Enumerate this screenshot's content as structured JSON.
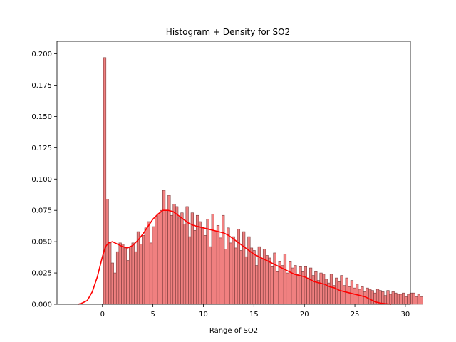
{
  "chart_data": {
    "type": "bar",
    "title": "Histogram + Density for SO2",
    "xlabel": "Range of SO2",
    "ylabel": "",
    "xlim": [
      -4.5,
      30.5
    ],
    "ylim": [
      0,
      0.21
    ],
    "xticks": [
      0,
      5,
      10,
      15,
      20,
      25,
      30
    ],
    "yticks": [
      0.0,
      0.025,
      0.05,
      0.075,
      0.1,
      0.125,
      0.15,
      0.175,
      0.2
    ],
    "xtick_labels": [
      "0",
      "5",
      "10",
      "15",
      "20",
      "25",
      "30"
    ],
    "ytick_labels": [
      "0.000",
      "0.025",
      "0.050",
      "0.075",
      "0.100",
      "0.125",
      "0.150",
      "0.175",
      "0.200"
    ],
    "grid": false,
    "bar_color": "#f08080",
    "bar_edge_color": "#7a3a3a",
    "density_color": "#ff0000",
    "histogram": {
      "bin_start": 0.1,
      "bin_width": 0.255,
      "values": [
        0.197,
        0.084,
        0.049,
        0.033,
        0.025,
        0.042,
        0.049,
        0.048,
        0.045,
        0.035,
        0.046,
        0.049,
        0.042,
        0.058,
        0.048,
        0.055,
        0.061,
        0.066,
        0.049,
        0.062,
        0.07,
        0.072,
        0.075,
        0.091,
        0.075,
        0.087,
        0.071,
        0.08,
        0.078,
        0.069,
        0.073,
        0.064,
        0.078,
        0.054,
        0.073,
        0.059,
        0.071,
        0.066,
        0.061,
        0.055,
        0.068,
        0.046,
        0.072,
        0.058,
        0.063,
        0.053,
        0.071,
        0.044,
        0.061,
        0.049,
        0.054,
        0.045,
        0.06,
        0.043,
        0.058,
        0.038,
        0.054,
        0.045,
        0.043,
        0.031,
        0.046,
        0.036,
        0.044,
        0.039,
        0.037,
        0.03,
        0.041,
        0.026,
        0.034,
        0.031,
        0.04,
        0.025,
        0.034,
        0.029,
        0.031,
        0.024,
        0.03,
        0.026,
        0.03,
        0.021,
        0.029,
        0.023,
        0.026,
        0.019,
        0.025,
        0.024,
        0.02,
        0.017,
        0.024,
        0.015,
        0.021,
        0.018,
        0.023,
        0.015,
        0.021,
        0.014,
        0.019,
        0.013,
        0.016,
        0.012,
        0.014,
        0.01,
        0.013,
        0.012,
        0.011,
        0.009,
        0.012,
        0.011,
        0.01,
        0.007,
        0.011,
        0.008,
        0.01,
        0.009,
        0.008,
        0.008,
        0.009,
        0.006,
        0.008,
        0.009,
        0.009,
        0.006,
        0.008,
        0.006
      ]
    },
    "density": {
      "x": [
        -2.4,
        -2.0,
        -1.5,
        -1.0,
        -0.5,
        0.0,
        0.3,
        0.6,
        1.0,
        1.5,
        2.0,
        2.5,
        3.0,
        3.5,
        4.0,
        4.5,
        5.0,
        5.5,
        6.0,
        6.5,
        7.0,
        7.5,
        8.0,
        8.5,
        9.0,
        9.5,
        10.0,
        10.5,
        11.0,
        11.5,
        12.0,
        12.5,
        13.0,
        13.5,
        14.0,
        14.5,
        15.0,
        15.5,
        16.0,
        16.5,
        17.0,
        17.5,
        18.0,
        18.5,
        19.0,
        19.5,
        20.0,
        20.5,
        21.0,
        21.5,
        22.0,
        22.5,
        23.0,
        23.5,
        24.0,
        24.5,
        25.0,
        25.5,
        26.0,
        26.5,
        27.0,
        27.5,
        28.0,
        28.6
      ],
      "y": [
        0.0,
        0.001,
        0.003,
        0.01,
        0.022,
        0.038,
        0.046,
        0.049,
        0.05,
        0.048,
        0.046,
        0.045,
        0.047,
        0.051,
        0.056,
        0.062,
        0.068,
        0.072,
        0.075,
        0.075,
        0.074,
        0.071,
        0.068,
        0.065,
        0.063,
        0.062,
        0.061,
        0.06,
        0.059,
        0.058,
        0.057,
        0.055,
        0.052,
        0.049,
        0.046,
        0.043,
        0.04,
        0.038,
        0.036,
        0.034,
        0.032,
        0.03,
        0.028,
        0.026,
        0.024,
        0.023,
        0.022,
        0.02,
        0.018,
        0.017,
        0.016,
        0.014,
        0.013,
        0.011,
        0.01,
        0.009,
        0.008,
        0.007,
        0.006,
        0.004,
        0.002,
        0.001,
        0.0005,
        0.0
      ]
    }
  }
}
